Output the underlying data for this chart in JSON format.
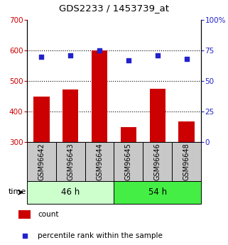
{
  "title": "GDS2233 / 1453739_at",
  "categories": [
    "GSM96642",
    "GSM96643",
    "GSM96644",
    "GSM96645",
    "GSM96646",
    "GSM96648"
  ],
  "bar_values": [
    450,
    473,
    600,
    348,
    475,
    368
  ],
  "bar_bottom": 300,
  "percentile_values": [
    70,
    71,
    75,
    67,
    71,
    68
  ],
  "bar_color": "#cc0000",
  "percentile_color": "#2222cc",
  "ylim_left": [
    300,
    700
  ],
  "ylim_right": [
    0,
    100
  ],
  "yticks_left": [
    300,
    400,
    500,
    600,
    700
  ],
  "yticks_right": [
    0,
    25,
    50,
    75,
    100
  ],
  "grid_lines": [
    400,
    500,
    600
  ],
  "group_labels": [
    "46 h",
    "54 h"
  ],
  "group_splits": [
    3
  ],
  "group_colors": [
    "#ccffcc",
    "#44ee44"
  ],
  "time_label": "time",
  "legend_count": "count",
  "legend_percentile": "percentile rank within the sample",
  "left_tick_color": "#cc0000",
  "right_tick_color": "#2222cc",
  "bg_label_area": "#c8c8c8",
  "figsize": [
    3.21,
    3.45
  ],
  "dpi": 100
}
